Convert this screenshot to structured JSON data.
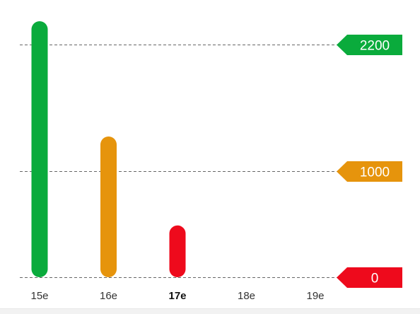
{
  "chart_data": {
    "type": "bar",
    "categories": [
      "15e",
      "16e",
      "17e",
      "18e",
      "19e"
    ],
    "active_category": "17e",
    "values": [
      2420,
      1330,
      490,
      null,
      null
    ],
    "bar_colors": [
      "#0aab3c",
      "#e6940c",
      "#ee0a1c",
      null,
      null
    ],
    "ylim": [
      0,
      2420
    ],
    "reference_lines": [
      {
        "value": 2200,
        "label": "2200",
        "color": "#0aab3c"
      },
      {
        "value": 1000,
        "label": "1000",
        "color": "#e6940c"
      },
      {
        "value": 0,
        "label": "0",
        "color": "#ee0a1c"
      }
    ],
    "grid_line_color": "#666666",
    "title": "",
    "xlabel": "",
    "ylabel": ""
  }
}
